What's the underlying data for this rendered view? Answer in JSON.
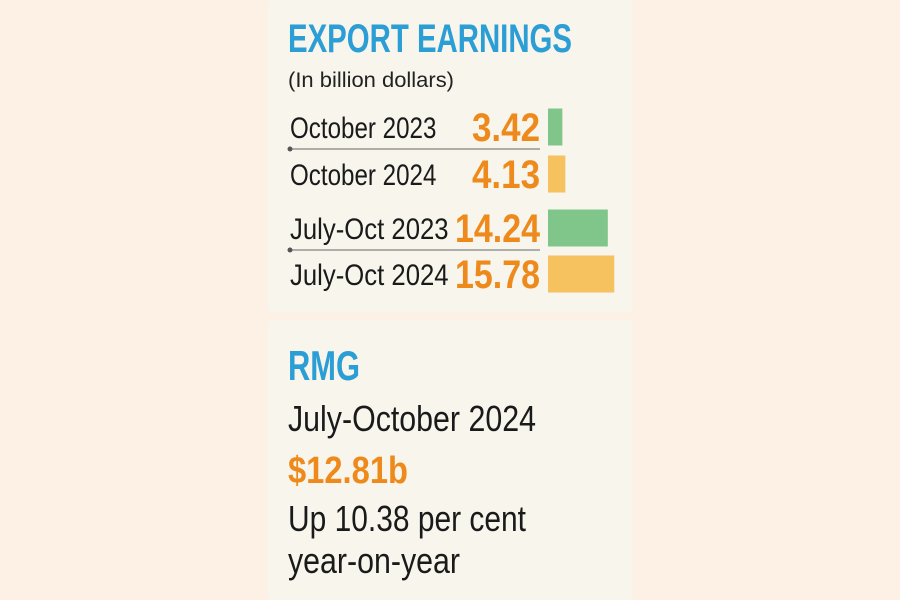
{
  "chart_data": {
    "type": "bar",
    "orientation": "horizontal",
    "title": "EXPORT EARNINGS",
    "subtitle": "(In billion dollars)",
    "categories": [
      "October 2023",
      "October 2024",
      "July-Oct 2023",
      "July-Oct 2024"
    ],
    "values": [
      3.42,
      4.13,
      14.24,
      15.78
    ],
    "colors": [
      "#80c68b",
      "#f6c15f",
      "#80c68b",
      "#f6c15f"
    ]
  },
  "rmg": {
    "title": "RMG",
    "period": "July-October 2024",
    "value": "$12.81b",
    "growth": [
      "Up 10.38 per cent",
      "year-on-year"
    ]
  }
}
